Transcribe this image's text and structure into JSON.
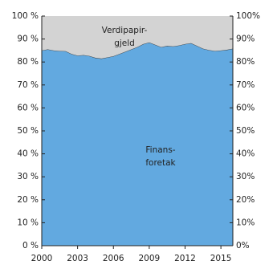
{
  "chart_data": {
    "type": "stacked_area",
    "x": [
      2000,
      2000.5,
      2001,
      2001.5,
      2002,
      2002.5,
      2003,
      2003.5,
      2004,
      2004.5,
      2005,
      2005.5,
      2006,
      2006.5,
      2007,
      2007.5,
      2008,
      2008.5,
      2009,
      2009.5,
      2010,
      2010.5,
      2011,
      2011.5,
      2012,
      2012.5,
      2013,
      2013.5,
      2014,
      2014.5,
      2015,
      2015.5,
      2016
    ],
    "series": [
      {
        "name": [
          "Finans-",
          "foretak"
        ],
        "color": "#62a9e0",
        "values": [
          85,
          85.5,
          85,
          84.8,
          84.7,
          83.5,
          82.8,
          83,
          82.6,
          81.8,
          81.5,
          82,
          82.5,
          83.5,
          84.5,
          85.5,
          86.5,
          87.8,
          88.5,
          87.5,
          86.5,
          87,
          86.8,
          87.2,
          87.8,
          88.2,
          87,
          85.8,
          85.2,
          84.8,
          85,
          85.3,
          85.8
        ]
      },
      {
        "name": [
          "Verdipapir-",
          "gjeld"
        ],
        "color": "#d3d3d3",
        "values": [
          15,
          14.5,
          15,
          15.2,
          15.3,
          16.5,
          17.2,
          17,
          17.4,
          18.2,
          18.5,
          18,
          17.5,
          16.5,
          15.5,
          14.5,
          13.5,
          12.2,
          11.5,
          12.5,
          13.5,
          13,
          13.2,
          12.8,
          12.2,
          11.8,
          13,
          14.2,
          14.8,
          15.2,
          15,
          14.7,
          14.2
        ]
      }
    ],
    "xlim": [
      2000,
      2016
    ],
    "xticks": [
      2000,
      2003,
      2006,
      2009,
      2012,
      2015
    ],
    "ylim": [
      0,
      100
    ],
    "yticks": [
      {
        "value": 0,
        "label": "0 %"
      },
      {
        "value": 10,
        "label": "10 %"
      },
      {
        "value": 20,
        "label": "20 %"
      },
      {
        "value": 30,
        "label": "30 %"
      },
      {
        "value": 40,
        "label": "40 %"
      },
      {
        "value": 50,
        "label": "50 %"
      },
      {
        "value": 60,
        "label": "60 %"
      },
      {
        "value": 70,
        "label": "70 %"
      },
      {
        "value": 80,
        "label": "80 %"
      },
      {
        "value": 90,
        "label": "90 %"
      },
      {
        "value": 100,
        "label": "100 %"
      }
    ],
    "y2lim": [
      0,
      100
    ],
    "y2ticks": [
      {
        "value": 0,
        "label": "0%"
      },
      {
        "value": 10,
        "label": "10%"
      },
      {
        "value": 20,
        "label": "20%"
      },
      {
        "value": 30,
        "label": "30%"
      },
      {
        "value": 40,
        "label": "40%"
      },
      {
        "value": 50,
        "label": "50%"
      },
      {
        "value": 60,
        "label": "60%"
      },
      {
        "value": 70,
        "label": "70%"
      },
      {
        "value": 80,
        "label": "80%"
      },
      {
        "value": 90,
        "label": "90%"
      },
      {
        "value": 100,
        "label": "100%"
      }
    ]
  }
}
